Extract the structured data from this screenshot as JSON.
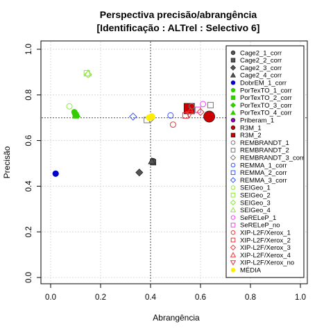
{
  "chart_data": {
    "type": "scatter",
    "title": "Perspectiva precisão/abrangência",
    "subtitle": "[Identificação : ALTrel : Selectivo 6]",
    "xlabel": "Abrangência",
    "ylabel": "Precisão",
    "xlim": [
      0,
      1
    ],
    "ylim": [
      0,
      1
    ],
    "xticks": [
      "0.0",
      "0.2",
      "0.4",
      "0.6",
      "0.8",
      "1.0"
    ],
    "yticks": [
      "0.0",
      "0.2",
      "0.4",
      "0.6",
      "0.8",
      "1.0"
    ],
    "grid": true,
    "legend_position": "right",
    "reference_lines": {
      "x": 0.4,
      "y": 0.7
    },
    "series": [
      {
        "name": "Cage2_1_corr",
        "color": "#555555",
        "shape": "circle-filled",
        "points": [
          [
            0.41,
            0.51
          ]
        ]
      },
      {
        "name": "Cage2_2_corr",
        "color": "#555555",
        "shape": "square-filled",
        "points": [
          [
            0.41,
            0.505
          ]
        ]
      },
      {
        "name": "Cage2_3_corr",
        "color": "#555555",
        "shape": "diamond-filled",
        "points": [
          [
            0.355,
            0.46
          ]
        ]
      },
      {
        "name": "Cage2_4_corr",
        "color": "#555555",
        "shape": "triangle-filled",
        "points": [
          [
            0.405,
            0.51
          ]
        ]
      },
      {
        "name": "DobrEM_1_corr",
        "color": "#0000cc",
        "shape": "circle-filled",
        "points": [
          [
            0.02,
            0.455
          ]
        ]
      },
      {
        "name": "PorTexTO_1_corr",
        "color": "#33cc00",
        "shape": "circle-filled",
        "points": [
          [
            0.095,
            0.725
          ]
        ]
      },
      {
        "name": "PorTexTO_2_corr",
        "color": "#33cc00",
        "shape": "square-filled",
        "points": [
          [
            0.1,
            0.71
          ]
        ]
      },
      {
        "name": "PorTexTO_3_corr",
        "color": "#33cc00",
        "shape": "diamond-filled",
        "points": [
          [
            0.1,
            0.715
          ]
        ]
      },
      {
        "name": "PorTexTO_4_corr",
        "color": "#33cc00",
        "shape": "triangle-filled",
        "points": [
          [
            0.105,
            0.715
          ]
        ]
      },
      {
        "name": "Priberam_1",
        "color": "#9900cc",
        "shape": "circle-filled",
        "points": []
      },
      {
        "name": "R3M_1",
        "color": "#cc0000",
        "shape": "circle-filled",
        "points": [
          [
            0.635,
            0.705
          ]
        ]
      },
      {
        "name": "R3M_2",
        "color": "#cc0000",
        "shape": "square-filled",
        "points": [
          [
            0.555,
            0.74
          ]
        ]
      },
      {
        "name": "REMBRANDT_1",
        "color": "#777777",
        "shape": "circle-open",
        "points": [
          [
            0.565,
            0.75
          ]
        ]
      },
      {
        "name": "REMBRANDT_2",
        "color": "#777777",
        "shape": "square-open",
        "points": [
          [
            0.385,
            0.69
          ],
          [
            0.64,
            0.755
          ]
        ]
      },
      {
        "name": "REMBRANDT_3_corr",
        "color": "#777777",
        "shape": "diamond-open",
        "points": [
          [
            0.4,
            0.695
          ]
        ]
      },
      {
        "name": "REMMA_1_corr",
        "color": "#3355ff",
        "shape": "circle-open",
        "points": [
          [
            0.48,
            0.71
          ]
        ]
      },
      {
        "name": "REMMA_2_corr",
        "color": "#3355ff",
        "shape": "square-open",
        "points": []
      },
      {
        "name": "REMMA_3_corr",
        "color": "#3355ff",
        "shape": "diamond-open",
        "points": [
          [
            0.33,
            0.705
          ]
        ]
      },
      {
        "name": "SEIGeo_1",
        "color": "#88ee33",
        "shape": "circle-open",
        "points": [
          [
            0.075,
            0.75
          ]
        ]
      },
      {
        "name": "SEIGeo_2",
        "color": "#88ee33",
        "shape": "square-open",
        "points": [
          [
            0.145,
            0.895
          ]
        ]
      },
      {
        "name": "SEIGeo_3",
        "color": "#88ee33",
        "shape": "diamond-open",
        "points": [
          [
            0.15,
            0.89
          ]
        ]
      },
      {
        "name": "SEIGeo_4",
        "color": "#88ee33",
        "shape": "triangle-open",
        "points": [
          [
            0.15,
            0.895
          ]
        ]
      },
      {
        "name": "SeRELeP_1",
        "color": "#ee44ee",
        "shape": "circle-open",
        "points": [
          [
            0.61,
            0.76
          ]
        ]
      },
      {
        "name": "SeRELeP_no",
        "color": "#ee44ee",
        "shape": "square-open",
        "points": [
          [
            0.59,
            0.735
          ]
        ]
      },
      {
        "name": "XIP-L2F/Xerox_1",
        "color": "#ee3333",
        "shape": "circle-open",
        "points": [
          [
            0.49,
            0.67
          ]
        ]
      },
      {
        "name": "XIP-L2F/Xerox_2",
        "color": "#ee3333",
        "shape": "square-open",
        "points": [
          [
            0.54,
            0.71
          ]
        ]
      },
      {
        "name": "XIP-L2F/Xerox_3",
        "color": "#ee3333",
        "shape": "diamond-open",
        "points": [
          [
            0.6,
            0.725
          ]
        ]
      },
      {
        "name": "XIP-L2F/Xerox_4",
        "color": "#ee3333",
        "shape": "triangle-open",
        "points": [
          [
            0.56,
            0.73
          ]
        ]
      },
      {
        "name": "XIP-L2F/Xerox_no",
        "color": "#ee3333",
        "shape": "triangle-down-open",
        "points": [
          [
            0.555,
            0.715
          ]
        ]
      },
      {
        "name": "MÉDIA",
        "color": "#ffee00",
        "shape": "circle-filled",
        "points": [
          [
            0.395,
            0.7
          ],
          [
            0.405,
            0.705
          ]
        ]
      }
    ]
  }
}
